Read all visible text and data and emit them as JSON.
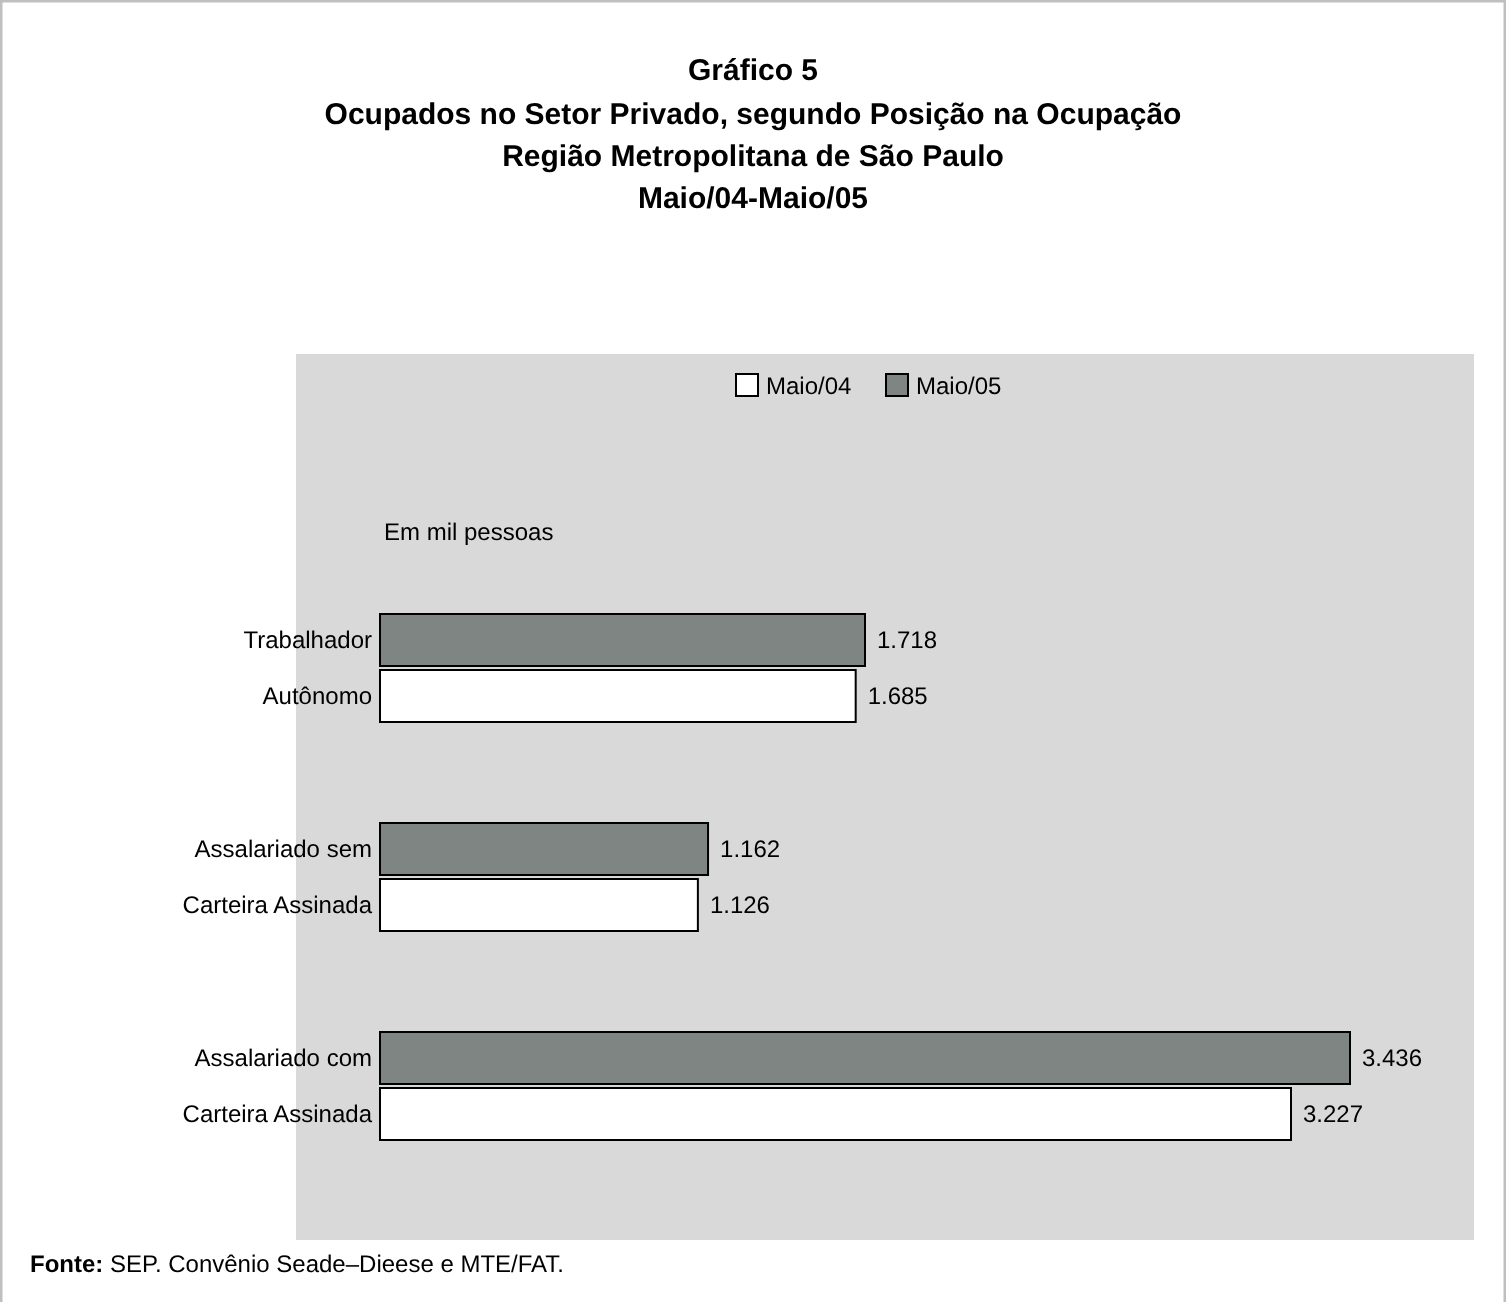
{
  "chart_data": {
    "type": "bar",
    "orientation": "horizontal",
    "title": "Gráfico 5",
    "subtitle": "Ocupados no Setor Privado, segundo Posição na Ocupação\nRegião Metropolitana de São Paulo\nMaio/04-Maio/05",
    "categories": [
      "Trabalhador Autônomo",
      "Assalariado sem Carteira Assinada",
      "Assalariado com Carteira Assinada"
    ],
    "series": [
      {
        "name": "Maio/05",
        "color": "#7f8583",
        "values": [
          1718,
          1162,
          3436
        ],
        "value_labels": [
          "1.718",
          "1.162",
          "3.436"
        ]
      },
      {
        "name": "Maio/04",
        "color": "#ffffff",
        "values": [
          1685,
          1126,
          3227
        ],
        "value_labels": [
          "1.685",
          "1.126",
          "3.227"
        ]
      }
    ],
    "legend": "top",
    "annotations": [
      "Em mil pessoas",
      "Fonte: SEP. Convênio Seade–Dieese e MTE/FAT."
    ]
  }
}
